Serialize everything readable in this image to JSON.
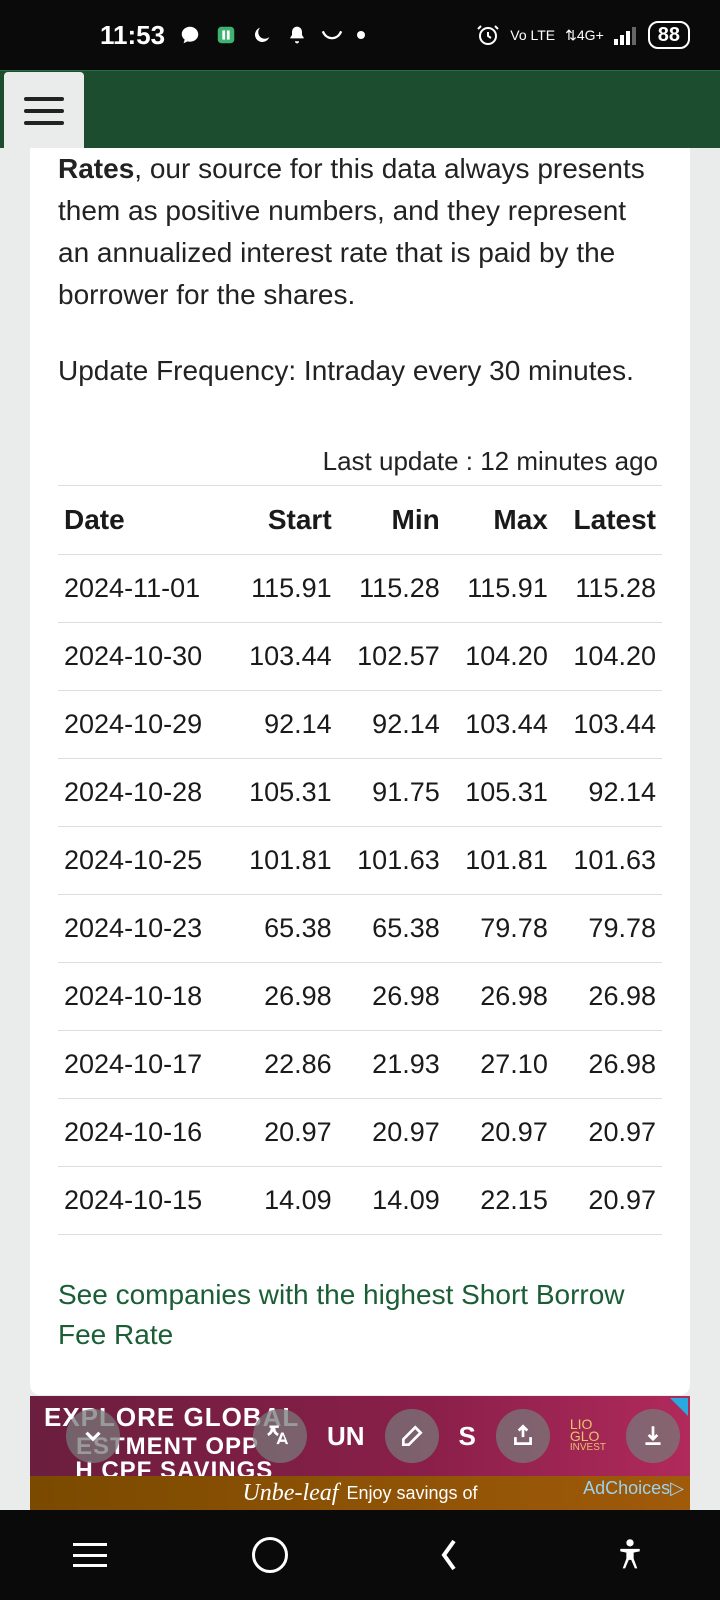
{
  "status": {
    "time": "11:53",
    "battery": "88",
    "net_label": "Vo LTE",
    "net2": "4G+"
  },
  "content": {
    "para_lead": "Rates",
    "para_rest": ", our source for this data always presents them as positive numbers, and they represent an annualized interest rate that is paid by the borrower for the shares.",
    "update_freq": "Update Frequency: Intraday every 30 minutes.",
    "last_update": "Last update : 12 minutes ago",
    "link_text": "See companies with the highest Short Borrow Fee Rate"
  },
  "table": {
    "columns": [
      "Date",
      "Start",
      "Min",
      "Max",
      "Latest"
    ],
    "rows": [
      [
        "2024-11-01",
        "115.91",
        "115.28",
        "115.91",
        "115.28"
      ],
      [
        "2024-10-30",
        "103.44",
        "102.57",
        "104.20",
        "104.20"
      ],
      [
        "2024-10-29",
        "92.14",
        "92.14",
        "103.44",
        "103.44"
      ],
      [
        "2024-10-28",
        "105.31",
        "91.75",
        "105.31",
        "92.14"
      ],
      [
        "2024-10-25",
        "101.81",
        "101.63",
        "101.81",
        "101.63"
      ],
      [
        "2024-10-23",
        "65.38",
        "65.38",
        "79.78",
        "79.78"
      ],
      [
        "2024-10-18",
        "26.98",
        "26.98",
        "26.98",
        "26.98"
      ],
      [
        "2024-10-17",
        "22.86",
        "21.93",
        "27.10",
        "26.98"
      ],
      [
        "2024-10-16",
        "20.97",
        "20.97",
        "20.97",
        "20.97"
      ],
      [
        "2024-10-15",
        "14.09",
        "14.09",
        "22.15",
        "20.97"
      ]
    ]
  },
  "ad": {
    "line1": "EXPLORE GLOBAL",
    "line2_a": "ESTMENT OPP",
    "line2_b": "UN",
    "line2_c": "S",
    "line3": "H CPF SAVINGS",
    "brand1": "LIO",
    "brand2": "GLO",
    "brand3": "INVEST",
    "ad2_script": "Unbe-leaf",
    "ad2_text": "Enjoy savings of",
    "adchoices": "AdChoices"
  },
  "colors": {
    "header_bg": "#1b4d2e",
    "link": "#1b5e35",
    "border": "#dddddd"
  }
}
